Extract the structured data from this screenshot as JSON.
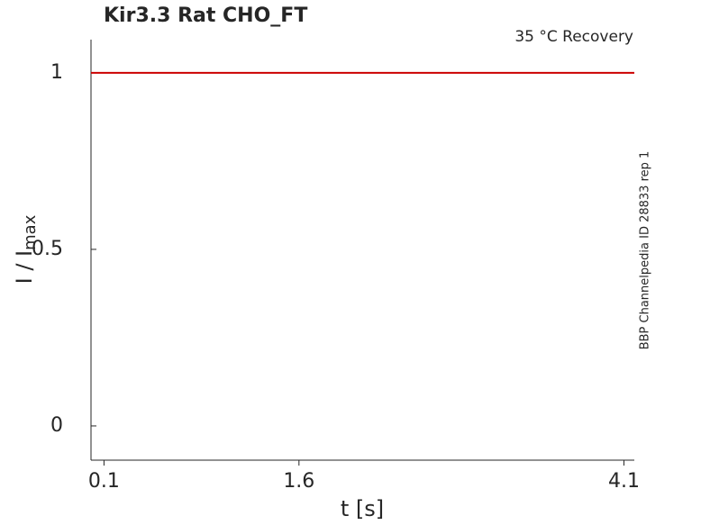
{
  "chart_data": {
    "type": "line",
    "title": "Kir3.3  Rat  CHO_FT",
    "subtitle": "35 °C  Recovery",
    "side_note": "BBP Channelpedia ID 28833 rep 1",
    "xlabel": "t [s]",
    "ylabel": "I / I",
    "ylabel_subscript": "max",
    "x": [
      0,
      4.18
    ],
    "series": [
      {
        "color": "#cc0000",
        "values": [
          1,
          1
        ]
      }
    ],
    "xlim": [
      0,
      4.18
    ],
    "xticks": [
      0.1,
      1.6,
      4.1
    ],
    "ylim": [
      -0.097,
      1.094
    ],
    "yticks": [
      0,
      0.5,
      1
    ],
    "grid": false
  }
}
